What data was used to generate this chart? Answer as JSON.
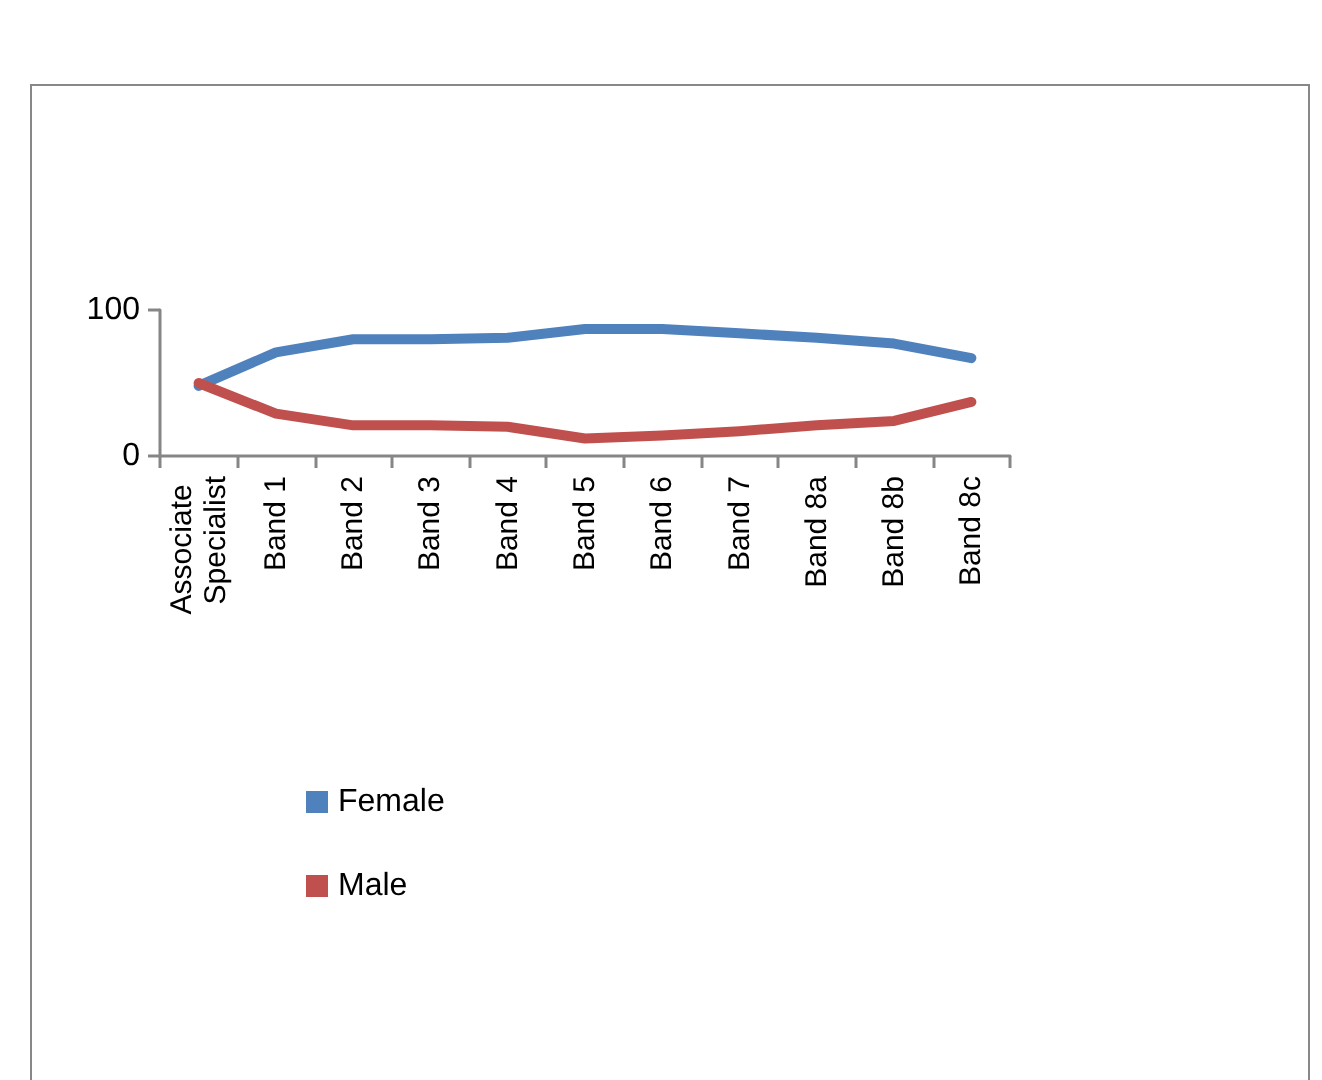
{
  "chart_data": {
    "type": "line",
    "categories": [
      "Associate Specialist",
      "Band 1",
      "Band 2",
      "Band 3",
      "Band 4",
      "Band 5",
      "Band 6",
      "Band 7",
      "Band 8a",
      "Band 8b",
      "Band 8c"
    ],
    "series": [
      {
        "name": "Female",
        "color": "#4f81bd",
        "values": [
          48,
          71,
          80,
          80,
          81,
          87,
          87,
          84,
          81,
          77,
          67
        ]
      },
      {
        "name": "Male",
        "color": "#c0504d",
        "values": [
          50,
          29,
          21,
          21,
          20,
          12,
          14,
          17,
          21,
          24,
          37
        ]
      }
    ],
    "ylim": [
      0,
      100
    ],
    "yticks": [
      0,
      100
    ],
    "legend": "bottom",
    "marker": "none"
  }
}
